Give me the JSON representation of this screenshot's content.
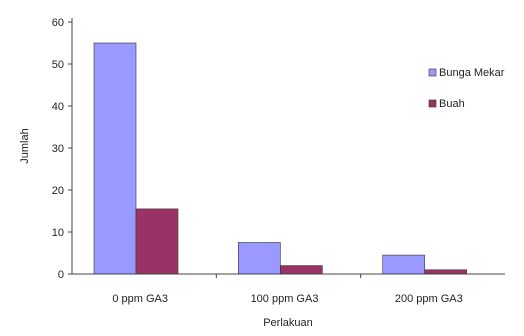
{
  "chart_data": {
    "type": "bar",
    "title": "",
    "xlabel": "Perlakuan",
    "ylabel": "Jumlah",
    "categories": [
      "0 ppm GA3",
      "100 ppm GA3",
      "200 ppm GA3"
    ],
    "series": [
      {
        "name": "Bunga Mekar",
        "values": [
          55,
          7.5,
          4.5
        ],
        "color": "#9999ff"
      },
      {
        "name": "Buah",
        "values": [
          15.5,
          2,
          1
        ],
        "color": "#993366"
      }
    ],
    "ylim": [
      0,
      60
    ],
    "yticks": [
      "0",
      "10",
      "20",
      "30",
      "40",
      "50",
      "60"
    ],
    "grid": false,
    "legend_position": "right"
  }
}
